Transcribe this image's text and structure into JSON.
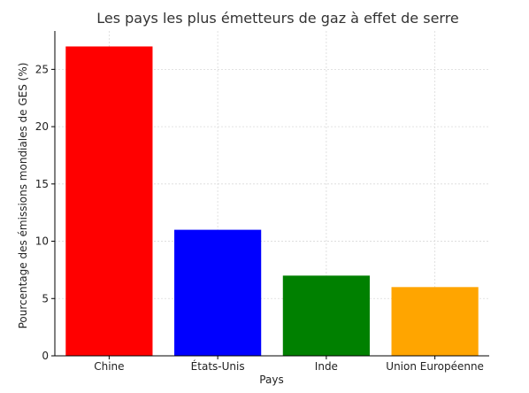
{
  "chart_data": {
    "type": "bar",
    "title": "Les pays les plus émetteurs de gaz à effet de serre",
    "xlabel": "Pays",
    "ylabel": "Pourcentage des émissions mondiales de GES (%)",
    "categories": [
      "Chine",
      "États-Unis",
      "Inde",
      "Union Européenne"
    ],
    "values": [
      27,
      11,
      7,
      6
    ],
    "colors": [
      "#ff0000",
      "#0000ff",
      "#008000",
      "#ffa500"
    ],
    "ylim": [
      0,
      28.35
    ],
    "yticks": [
      0,
      5,
      10,
      15,
      20,
      25
    ],
    "grid": true
  }
}
